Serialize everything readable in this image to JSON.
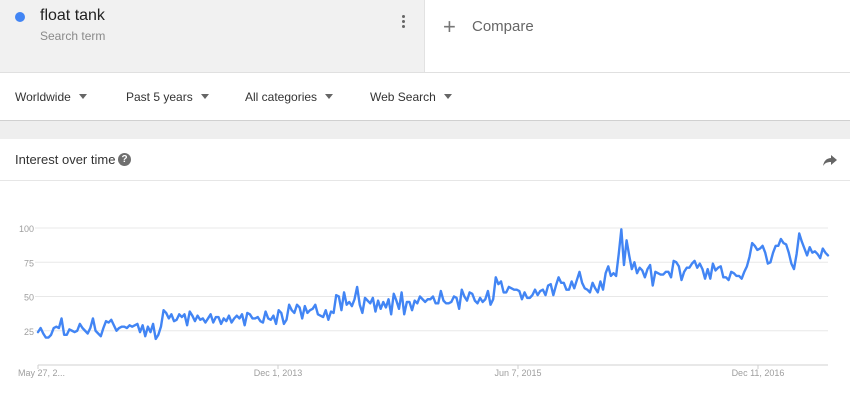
{
  "search_term": {
    "name": "float tank",
    "subtitle": "Search term",
    "color": "#4285f4"
  },
  "compare": {
    "label": "Compare"
  },
  "filters": [
    "Worldwide",
    "Past 5 years",
    "All categories",
    "Web Search"
  ],
  "card": {
    "title": "Interest over time",
    "help_icon": "?"
  },
  "icons": {
    "dot": "series-color-dot",
    "menu": "more-vert-icon",
    "add": "plus-icon",
    "share": "share-icon"
  },
  "chart_data": {
    "type": "line",
    "title": "",
    "xlabel": "",
    "ylabel": "",
    "ylim": [
      0,
      100
    ],
    "yticks": [
      25,
      50,
      75,
      100
    ],
    "xtick_labels": [
      "May 27, 2...",
      "Dec 1, 2013",
      "Jun 7, 2015",
      "Dec 11, 2016"
    ],
    "grid": true,
    "series": [
      {
        "color": "#4285f4",
        "values": [
          24,
          27,
          23,
          20,
          20,
          22,
          27,
          28,
          27,
          34,
          22,
          22,
          26,
          25,
          24,
          25,
          30,
          27,
          25,
          23,
          27,
          34,
          25,
          23,
          21,
          27,
          32,
          31,
          33,
          29,
          25,
          27,
          28,
          28,
          27,
          29,
          28,
          29,
          30,
          24,
          29,
          21,
          28,
          24,
          30,
          19,
          22,
          28,
          40,
          38,
          34,
          37,
          32,
          33,
          37,
          35,
          37,
          29,
          39,
          36,
          32,
          36,
          33,
          34,
          31,
          34,
          37,
          31,
          35,
          35,
          30,
          34,
          32,
          36,
          31,
          34,
          36,
          34,
          37,
          29,
          38,
          37,
          34,
          34,
          35,
          32,
          31,
          39,
          34,
          33,
          36,
          30,
          40,
          38,
          30,
          33,
          44,
          40,
          38,
          44,
          42,
          34,
          43,
          38,
          40,
          41,
          44,
          37,
          36,
          35,
          40,
          33,
          39,
          38,
          51,
          50,
          40,
          53,
          44,
          46,
          43,
          48,
          57,
          44,
          38,
          49,
          47,
          45,
          49,
          39,
          47,
          41,
          46,
          42,
          48,
          37,
          52,
          47,
          41,
          53,
          37,
          46,
          46,
          40,
          47,
          45,
          50,
          48,
          46,
          48,
          48,
          50,
          45,
          45,
          54,
          47,
          45,
          45,
          46,
          50,
          49,
          41,
          55,
          50,
          47,
          53,
          52,
          47,
          45,
          49,
          46,
          48,
          54,
          44,
          48,
          64,
          59,
          61,
          53,
          53,
          57,
          56,
          55,
          55,
          54,
          48,
          53,
          49,
          49,
          51,
          55,
          51,
          54,
          55,
          51,
          58,
          59,
          51,
          58,
          64,
          60,
          60,
          55,
          55,
          61,
          56,
          62,
          68,
          60,
          56,
          55,
          53,
          60,
          56,
          53,
          61,
          55,
          67,
          72,
          65,
          67,
          65,
          81,
          99,
          73,
          91,
          80,
          70,
          75,
          67,
          71,
          69,
          64,
          70,
          73,
          58,
          68,
          67,
          66,
          66,
          68,
          68,
          64,
          76,
          75,
          72,
          62,
          68,
          71,
          71,
          74,
          76,
          71,
          74,
          70,
          63,
          70,
          63,
          74,
          69,
          71,
          72,
          64,
          64,
          62,
          68,
          67,
          65,
          65,
          63,
          68,
          72,
          79,
          89,
          87,
          84,
          85,
          87,
          82,
          74,
          75,
          82,
          87,
          87,
          92,
          89,
          88,
          82,
          74,
          70,
          81,
          96,
          90,
          85,
          80,
          86,
          82,
          83,
          81,
          78,
          85,
          82,
          80
        ]
      }
    ]
  }
}
